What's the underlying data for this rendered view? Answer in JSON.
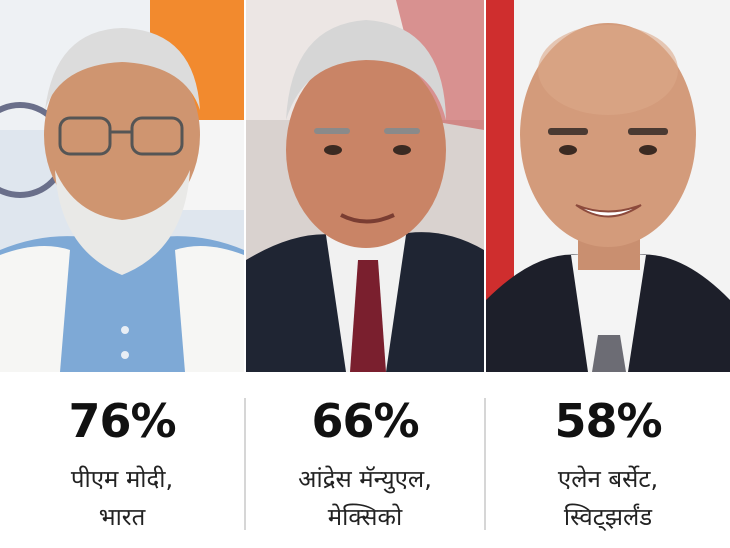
{
  "leaders": [
    {
      "percent": "76%",
      "name_line1": "पीएम मोदी,",
      "name_line2": "भारत"
    },
    {
      "percent": "66%",
      "name_line1": "आंद्रेस मॅन्युएल,",
      "name_line2": "मेक्सिको"
    },
    {
      "percent": "58%",
      "name_line1": "एलेन बर्सेट,",
      "name_line2": "स्विट्झर्लंड"
    }
  ],
  "colors": {
    "background": "#ffffff",
    "text": "#111111",
    "separator": "#d6d6d6"
  }
}
